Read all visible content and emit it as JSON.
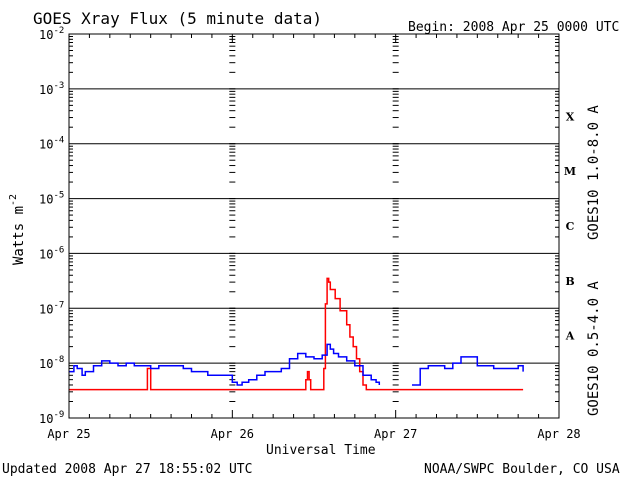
{
  "header": {
    "title": "GOES Xray Flux (5 minute data)",
    "begin": "Begin:  2008 Apr 25 0000 UTC"
  },
  "footer": {
    "updated": "Updated 2008 Apr 27 18:55:02 UTC",
    "credit": "NOAA/SWPC Boulder, CO USA"
  },
  "colors": {
    "long_channel": "#ff0000",
    "short_channel": "#0000ff",
    "grid": "#000000"
  },
  "chart_data": {
    "type": "line",
    "title": "GOES Xray Flux (5 minute data)",
    "xlabel": "Universal Time",
    "ylabel": "Watts m",
    "ylabel_superscript": "-2",
    "yscale": "log",
    "ylim_exponents": [
      -9,
      -2
    ],
    "y_ticks": [
      {
        "base": "10",
        "exp": "-2",
        "value": 0.01
      },
      {
        "base": "10",
        "exp": "-3",
        "value": 0.001
      },
      {
        "base": "10",
        "exp": "-4",
        "value": 0.0001
      },
      {
        "base": "10",
        "exp": "-5",
        "value": 1e-05
      },
      {
        "base": "10",
        "exp": "-6",
        "value": 1e-06
      },
      {
        "base": "10",
        "exp": "-7",
        "value": 1e-07
      },
      {
        "base": "10",
        "exp": "-8",
        "value": 1e-08
      },
      {
        "base": "10",
        "exp": "-9",
        "value": 1e-09
      }
    ],
    "xlim_days": [
      0,
      3
    ],
    "x_ticks": [
      {
        "label": "Apr 25",
        "day": 0
      },
      {
        "label": "Apr 26",
        "day": 1
      },
      {
        "label": "Apr 27",
        "day": 2
      },
      {
        "label": "Apr 28",
        "day": 3
      }
    ],
    "flare_classes": [
      {
        "label": "X",
        "value": 0.0001
      },
      {
        "label": "M",
        "value": 1e-05
      },
      {
        "label": "C",
        "value": 1e-06
      },
      {
        "label": "B",
        "value": 1e-07
      },
      {
        "label": "A",
        "value": 1e-08
      }
    ],
    "grid": true,
    "legend": [
      {
        "label": "GOES10 1.0-8.0 A"
      },
      {
        "label": "GOES10 0.5-4.0 A"
      }
    ],
    "series": [
      {
        "channel": "1.0-8.0 A",
        "x_days": [
          0,
          0.47,
          0.48,
          0.49,
          0.5,
          0.51,
          1.44,
          1.45,
          1.46,
          1.47,
          1.48,
          1.5,
          1.5,
          1.55,
          1.56,
          1.57,
          1.58,
          1.59,
          1.6,
          1.63,
          1.66,
          1.7,
          1.72,
          1.74,
          1.76,
          1.78,
          1.8,
          1.82,
          1.85,
          2.5,
          2.78
        ],
        "y": [
          3.3e-09,
          3.3e-09,
          8e-09,
          8e-09,
          3.3e-09,
          3.3e-09,
          3.3e-09,
          5e-09,
          7e-09,
          5e-09,
          3.3e-09,
          3.3e-09,
          3.3e-09,
          3.3e-09,
          8e-09,
          1.2e-07,
          3.5e-07,
          3e-07,
          2.2e-07,
          1.5e-07,
          9e-08,
          5e-08,
          3e-08,
          2e-08,
          1.2e-08,
          7e-09,
          4e-09,
          3.3e-09,
          3.3e-09,
          3.3e-09,
          3.3e-09
        ]
      },
      {
        "channel": "0.5-4.0 A",
        "x_days": [
          0,
          0.03,
          0.05,
          0.08,
          0.1,
          0.15,
          0.2,
          0.25,
          0.3,
          0.35,
          0.4,
          0.45,
          0.5,
          0.55,
          0.6,
          0.65,
          0.7,
          0.75,
          0.8,
          0.85,
          0.9,
          0.95,
          1.0,
          1.03,
          1.06,
          1.1,
          1.15,
          1.2,
          1.25,
          1.3,
          1.35,
          1.4,
          1.45,
          1.5,
          1.55,
          1.58,
          1.6,
          1.62,
          1.65,
          1.7,
          1.75,
          1.8,
          1.85,
          1.88,
          1.9,
          2.0,
          2.1,
          2.15,
          2.2,
          2.3,
          2.35,
          2.4,
          2.5,
          2.6,
          2.7,
          2.75,
          2.78
        ],
        "y": [
          7e-09,
          9e-09,
          8e-09,
          6e-09,
          7e-09,
          9e-09,
          1.1e-08,
          1e-08,
          9e-09,
          1e-08,
          9e-09,
          9e-09,
          8e-09,
          9e-09,
          9e-09,
          9e-09,
          8e-09,
          7e-09,
          7e-09,
          6e-09,
          6e-09,
          6e-09,
          4.5e-09,
          4e-09,
          4.5e-09,
          5e-09,
          6e-09,
          7e-09,
          7e-09,
          8e-09,
          1.2e-08,
          1.5e-08,
          1.3e-08,
          1.2e-08,
          1.4e-08,
          2.2e-08,
          1.8e-08,
          1.5e-08,
          1.3e-08,
          1.1e-08,
          9e-09,
          6e-09,
          5e-09,
          4.5e-09,
          4e-09,
          null,
          4e-09,
          8e-09,
          9e-09,
          8e-09,
          1e-08,
          1.3e-08,
          9e-09,
          8e-09,
          8e-09,
          9e-09,
          7e-09
        ]
      }
    ]
  }
}
